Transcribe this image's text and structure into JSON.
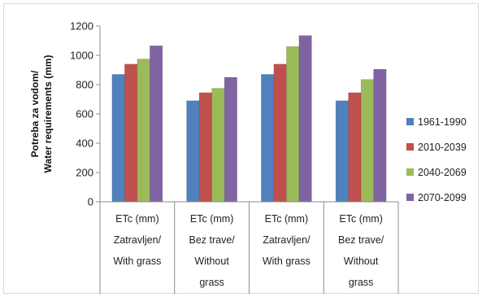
{
  "chart_data": {
    "type": "bar",
    "categories": [
      [
        "ETc (mm)",
        "Zatravljen/",
        "With grass"
      ],
      [
        "ETc (mm)",
        "Bez trave/",
        "Without",
        "grass"
      ],
      [
        "ETc (mm)",
        "Zatravljen/",
        "With grass"
      ],
      [
        "ETc (mm)",
        "Bez trave/",
        "Without",
        "grass"
      ]
    ],
    "series": [
      {
        "name": "1961-1990",
        "color": "#4f81bd",
        "values": [
          870,
          690,
          870,
          690
        ]
      },
      {
        "name": "2010-2039",
        "color": "#c0504d",
        "values": [
          940,
          745,
          940,
          745
        ]
      },
      {
        "name": "2040-2069",
        "color": "#9bbb59",
        "values": [
          975,
          775,
          1060,
          835
        ]
      },
      {
        "name": "2070-2099",
        "color": "#8064a2",
        "values": [
          1065,
          850,
          1135,
          905
        ]
      }
    ],
    "ylabel_lines": [
      "Potreba za vodom/",
      "Water requirements (mm)"
    ],
    "ylim": [
      0,
      1200
    ],
    "yticks": [
      0,
      200,
      400,
      600,
      800,
      1000,
      1200
    ],
    "grid": false,
    "legend_position": "right"
  }
}
